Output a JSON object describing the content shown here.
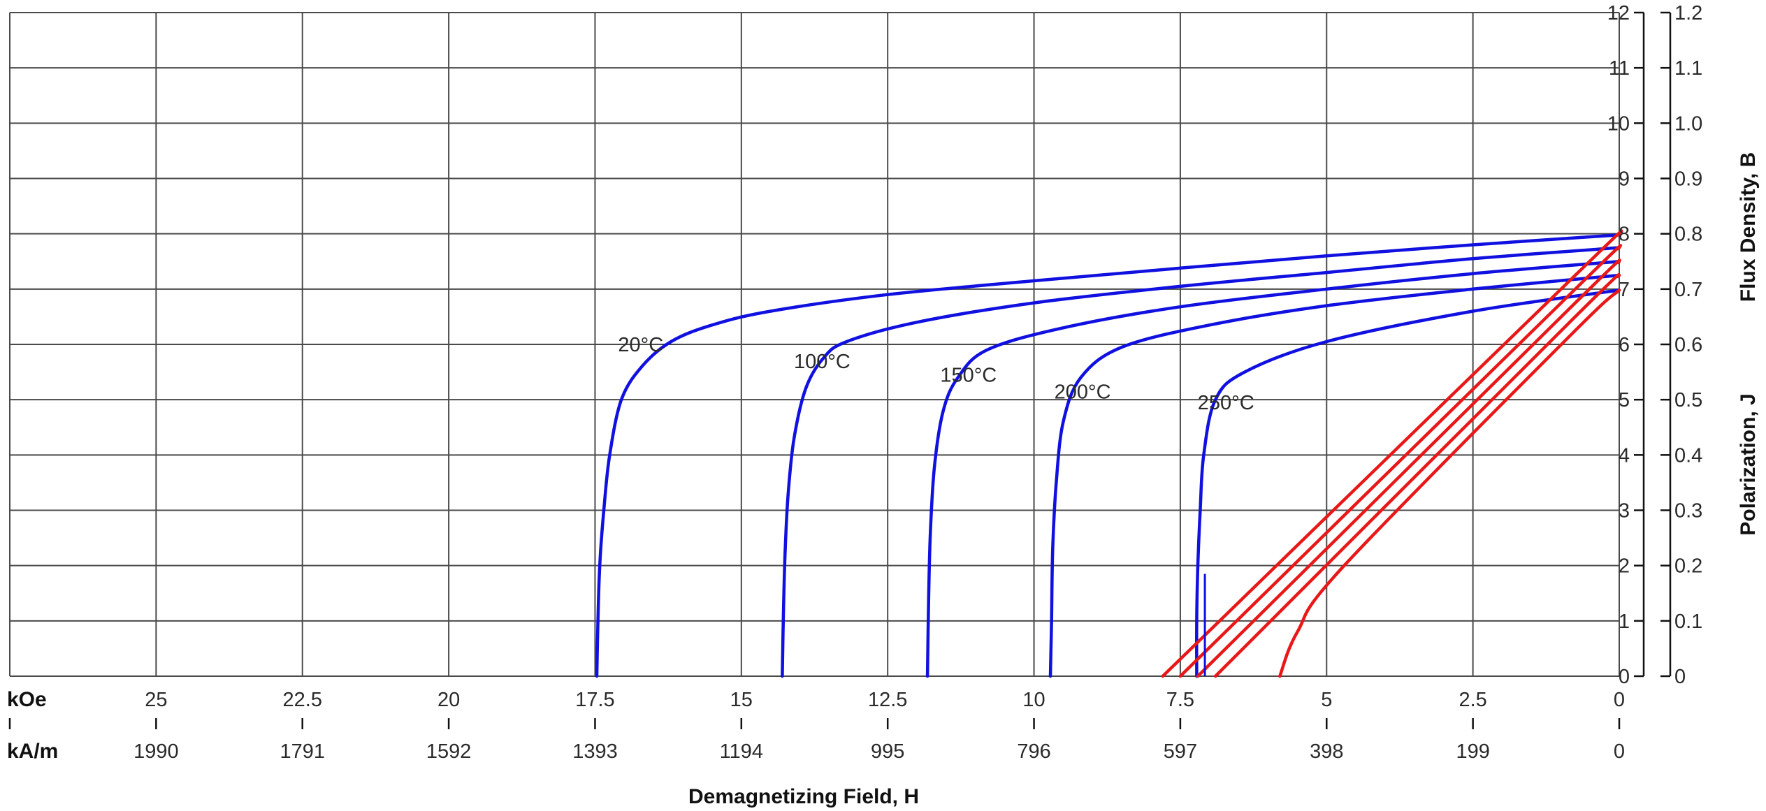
{
  "chart_data": {
    "type": "line",
    "x_scale": {
      "label": "kOe",
      "ticks": [
        "25",
        "22.5",
        "20",
        "17.5",
        "15",
        "12.5",
        "10",
        "7.5",
        "5",
        "2.5",
        "0"
      ],
      "xlim": [
        27.5,
        0
      ]
    },
    "x_scale_secondary": {
      "label": "kA/m",
      "ticks": [
        "1990",
        "1791",
        "1592",
        "1393",
        "1194",
        "995",
        "796",
        "597",
        "398",
        "199",
        "0"
      ]
    },
    "xlabel": "Demagnetizing Field, H",
    "y_ticks_left": [
      "0",
      "1",
      "2",
      "3",
      "4",
      "5",
      "6",
      "7",
      "8",
      "9",
      "10",
      "11",
      "12"
    ],
    "y_ticks_right": [
      "0",
      "0.1",
      "0.2",
      "0.3",
      "0.4",
      "0.5",
      "0.6",
      "0.7",
      "0.8",
      "0.9",
      "1.0",
      "1.1",
      "1.2"
    ],
    "ylabel_polarization": "Polarization,  J",
    "ylabel_flux": "Flux Density,  B",
    "ylim": [
      0,
      12
    ],
    "grid": true,
    "colors": {
      "polarization": "#1010e0",
      "flux": "#e81818",
      "grid": "#4a4a4a"
    },
    "series": [
      {
        "name": "20°C",
        "kind": "J",
        "x": [
          0,
          2.5,
          5,
          7.5,
          10,
          12.5,
          14.5,
          15.5,
          16.2,
          16.7,
          17.05,
          17.25,
          17.35,
          17.42,
          17.45,
          17.47
        ],
        "y": [
          7.98,
          7.8,
          7.6,
          7.38,
          7.15,
          6.9,
          6.6,
          6.35,
          6.05,
          5.6,
          5.0,
          4.0,
          3.0,
          2.0,
          1.0,
          0
        ]
      },
      {
        "name": "100°C",
        "kind": "J",
        "x": [
          0,
          2.5,
          5,
          7.5,
          10,
          12,
          13.2,
          13.6,
          13.9,
          14.1,
          14.2,
          14.25,
          14.28,
          14.3
        ],
        "y": [
          7.75,
          7.55,
          7.3,
          7.05,
          6.75,
          6.4,
          6.05,
          5.75,
          5.2,
          4.3,
          3.3,
          2.3,
          1.2,
          0
        ]
      },
      {
        "name": "150°C",
        "kind": "J",
        "x": [
          0,
          2.5,
          5,
          7.5,
          9.5,
          10.8,
          11.3,
          11.55,
          11.7,
          11.77,
          11.8,
          11.82
        ],
        "y": [
          7.5,
          7.28,
          7.0,
          6.68,
          6.3,
          5.9,
          5.4,
          4.8,
          3.8,
          2.6,
          1.4,
          0
        ]
      },
      {
        "name": "200°C",
        "kind": "J",
        "x": [
          0,
          2.5,
          5,
          7,
          8.5,
          9.2,
          9.5,
          9.62,
          9.68,
          9.7,
          9.72
        ],
        "y": [
          7.25,
          7.0,
          6.7,
          6.35,
          5.95,
          5.4,
          4.6,
          3.5,
          2.3,
          1.0,
          0
        ]
      },
      {
        "name": "250°C",
        "kind": "J",
        "x": [
          0,
          2.5,
          5,
          6.4,
          6.9,
          7.1,
          7.16,
          7.2,
          7.22,
          7.22
        ],
        "y": [
          6.98,
          6.6,
          6.05,
          5.5,
          5.0,
          4.0,
          3.0,
          2.0,
          1.0,
          0
        ]
      },
      {
        "name": "",
        "kind": "B",
        "x": [
          0,
          0.8,
          7.8
        ],
        "y": [
          8.0,
          7.2,
          0
        ]
      },
      {
        "name": "",
        "kind": "B",
        "x": [
          0,
          0.8,
          7.5
        ],
        "y": [
          7.75,
          6.95,
          0
        ]
      },
      {
        "name": "",
        "kind": "B",
        "x": [
          0,
          0.8,
          7.2
        ],
        "y": [
          7.5,
          6.7,
          0
        ]
      },
      {
        "name": "",
        "kind": "B",
        "x": [
          0,
          0.8,
          6.9
        ],
        "y": [
          7.25,
          6.45,
          0
        ]
      },
      {
        "name": "",
        "kind": "B",
        "x": [
          0,
          0.8,
          4.7,
          5.5,
          5.8
        ],
        "y": [
          6.98,
          6.2,
          2.0,
          0.8,
          0
        ]
      }
    ],
    "annotations": [
      {
        "text": "20°C",
        "x": 16.6,
        "y": 6.05
      },
      {
        "text": "100°C",
        "x": 13.5,
        "y": 5.75
      },
      {
        "text": "150°C",
        "x": 11.0,
        "y": 5.5
      },
      {
        "text": "200°C",
        "x": 9.05,
        "y": 5.2
      },
      {
        "text": "250°C",
        "x": 6.6,
        "y": 5.0
      }
    ],
    "spike": {
      "x": 7.08,
      "y": [
        0,
        1.85
      ]
    }
  }
}
